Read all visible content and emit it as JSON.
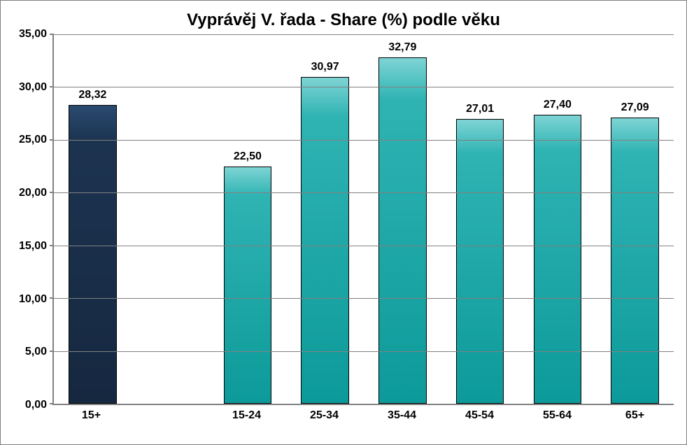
{
  "chart": {
    "type": "bar",
    "title": "Vyprávěj V. řada - Share (%) podle věku",
    "title_fontsize": 24,
    "title_color": "#000000",
    "background_color": "#ffffff",
    "border_color": "#7f7f7f",
    "axis_color": "#808080",
    "grid_color": "#808080",
    "label_fontsize": 16,
    "label_fontweight": "bold",
    "decimal_separator": ",",
    "ylim": [
      0,
      35
    ],
    "ytick_step": 5,
    "yticks": [
      "0,00",
      "5,00",
      "10,00",
      "15,00",
      "20,00",
      "25,00",
      "30,00",
      "35,00"
    ],
    "categories": [
      "15+",
      "15-24",
      "25-34",
      "35-44",
      "45-54",
      "55-64",
      "65+"
    ],
    "category_gap_after_first": true,
    "values": [
      28.32,
      22.5,
      30.97,
      32.79,
      27.01,
      27.4,
      27.09
    ],
    "value_labels": [
      "28,32",
      "22,50",
      "30,97",
      "32,79",
      "27,01",
      "27,40",
      "27,09"
    ],
    "bar_colors": [
      "#162840",
      "#0d9a9a",
      "#0d9a9a",
      "#0d9a9a",
      "#0d9a9a",
      "#0d9a9a",
      "#0d9a9a"
    ],
    "bar_color_classes": [
      "navy",
      "teal",
      "teal",
      "teal",
      "teal",
      "teal",
      "teal"
    ],
    "bar_border_color": "#000000",
    "bar_width_ratio": 0.62,
    "slot_count": 8,
    "bar_slots": [
      0,
      2,
      3,
      4,
      5,
      6,
      7
    ]
  }
}
